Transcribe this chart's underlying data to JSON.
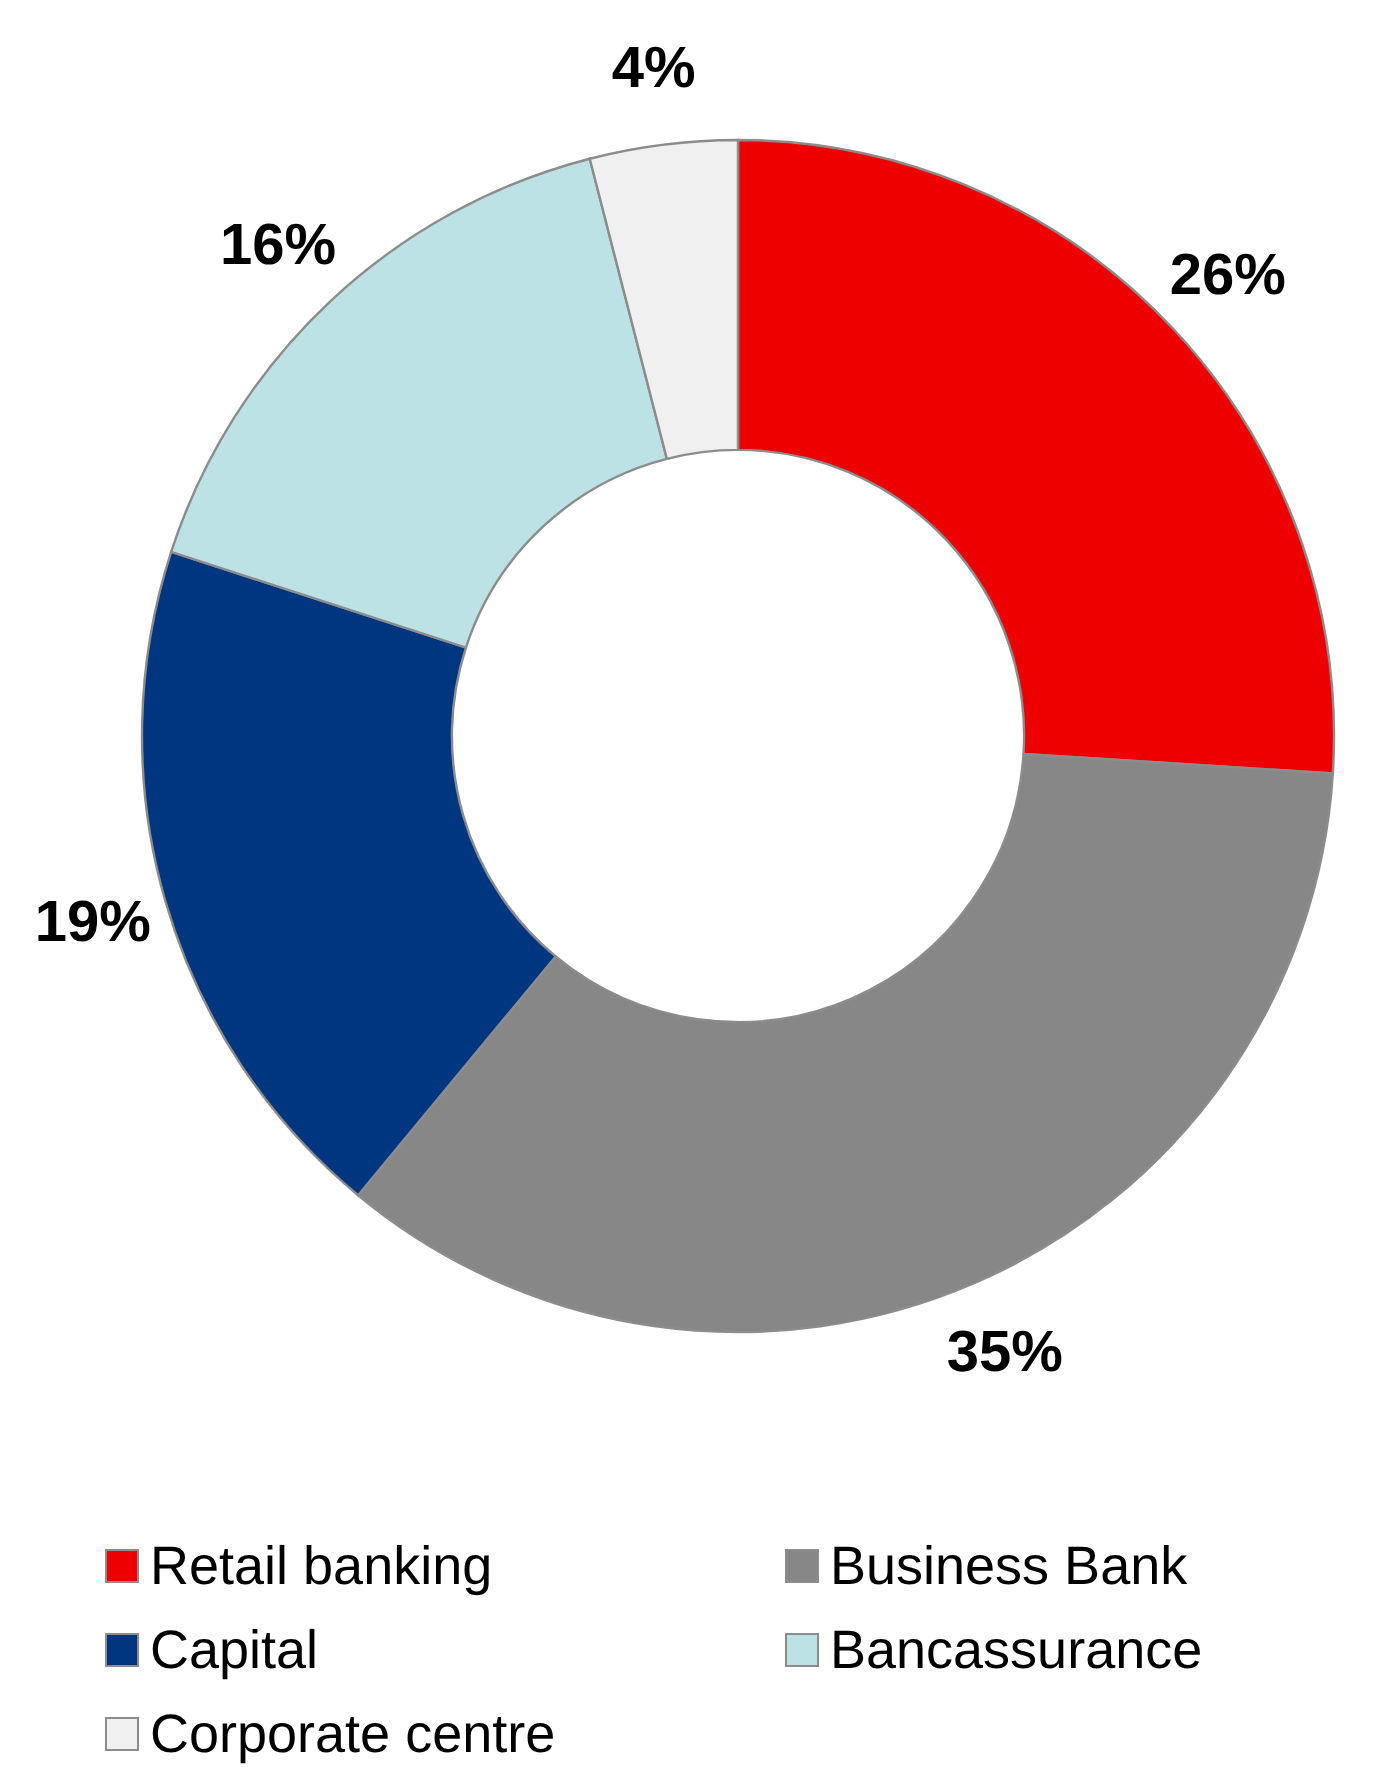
{
  "chart_data": {
    "type": "donut",
    "categories": [
      "Retail banking",
      "Business Bank",
      "Capital",
      "Bancassurance",
      "Corporate centre"
    ],
    "values": [
      26,
      35,
      19,
      16,
      4
    ],
    "colors": [
      "#ee0000",
      "#878787",
      "#003580",
      "#bde2e6",
      "#f0f0f0"
    ],
    "value_labels": [
      "26%",
      "35%",
      "19%",
      "16%",
      "4%"
    ],
    "legend": "bottom"
  }
}
